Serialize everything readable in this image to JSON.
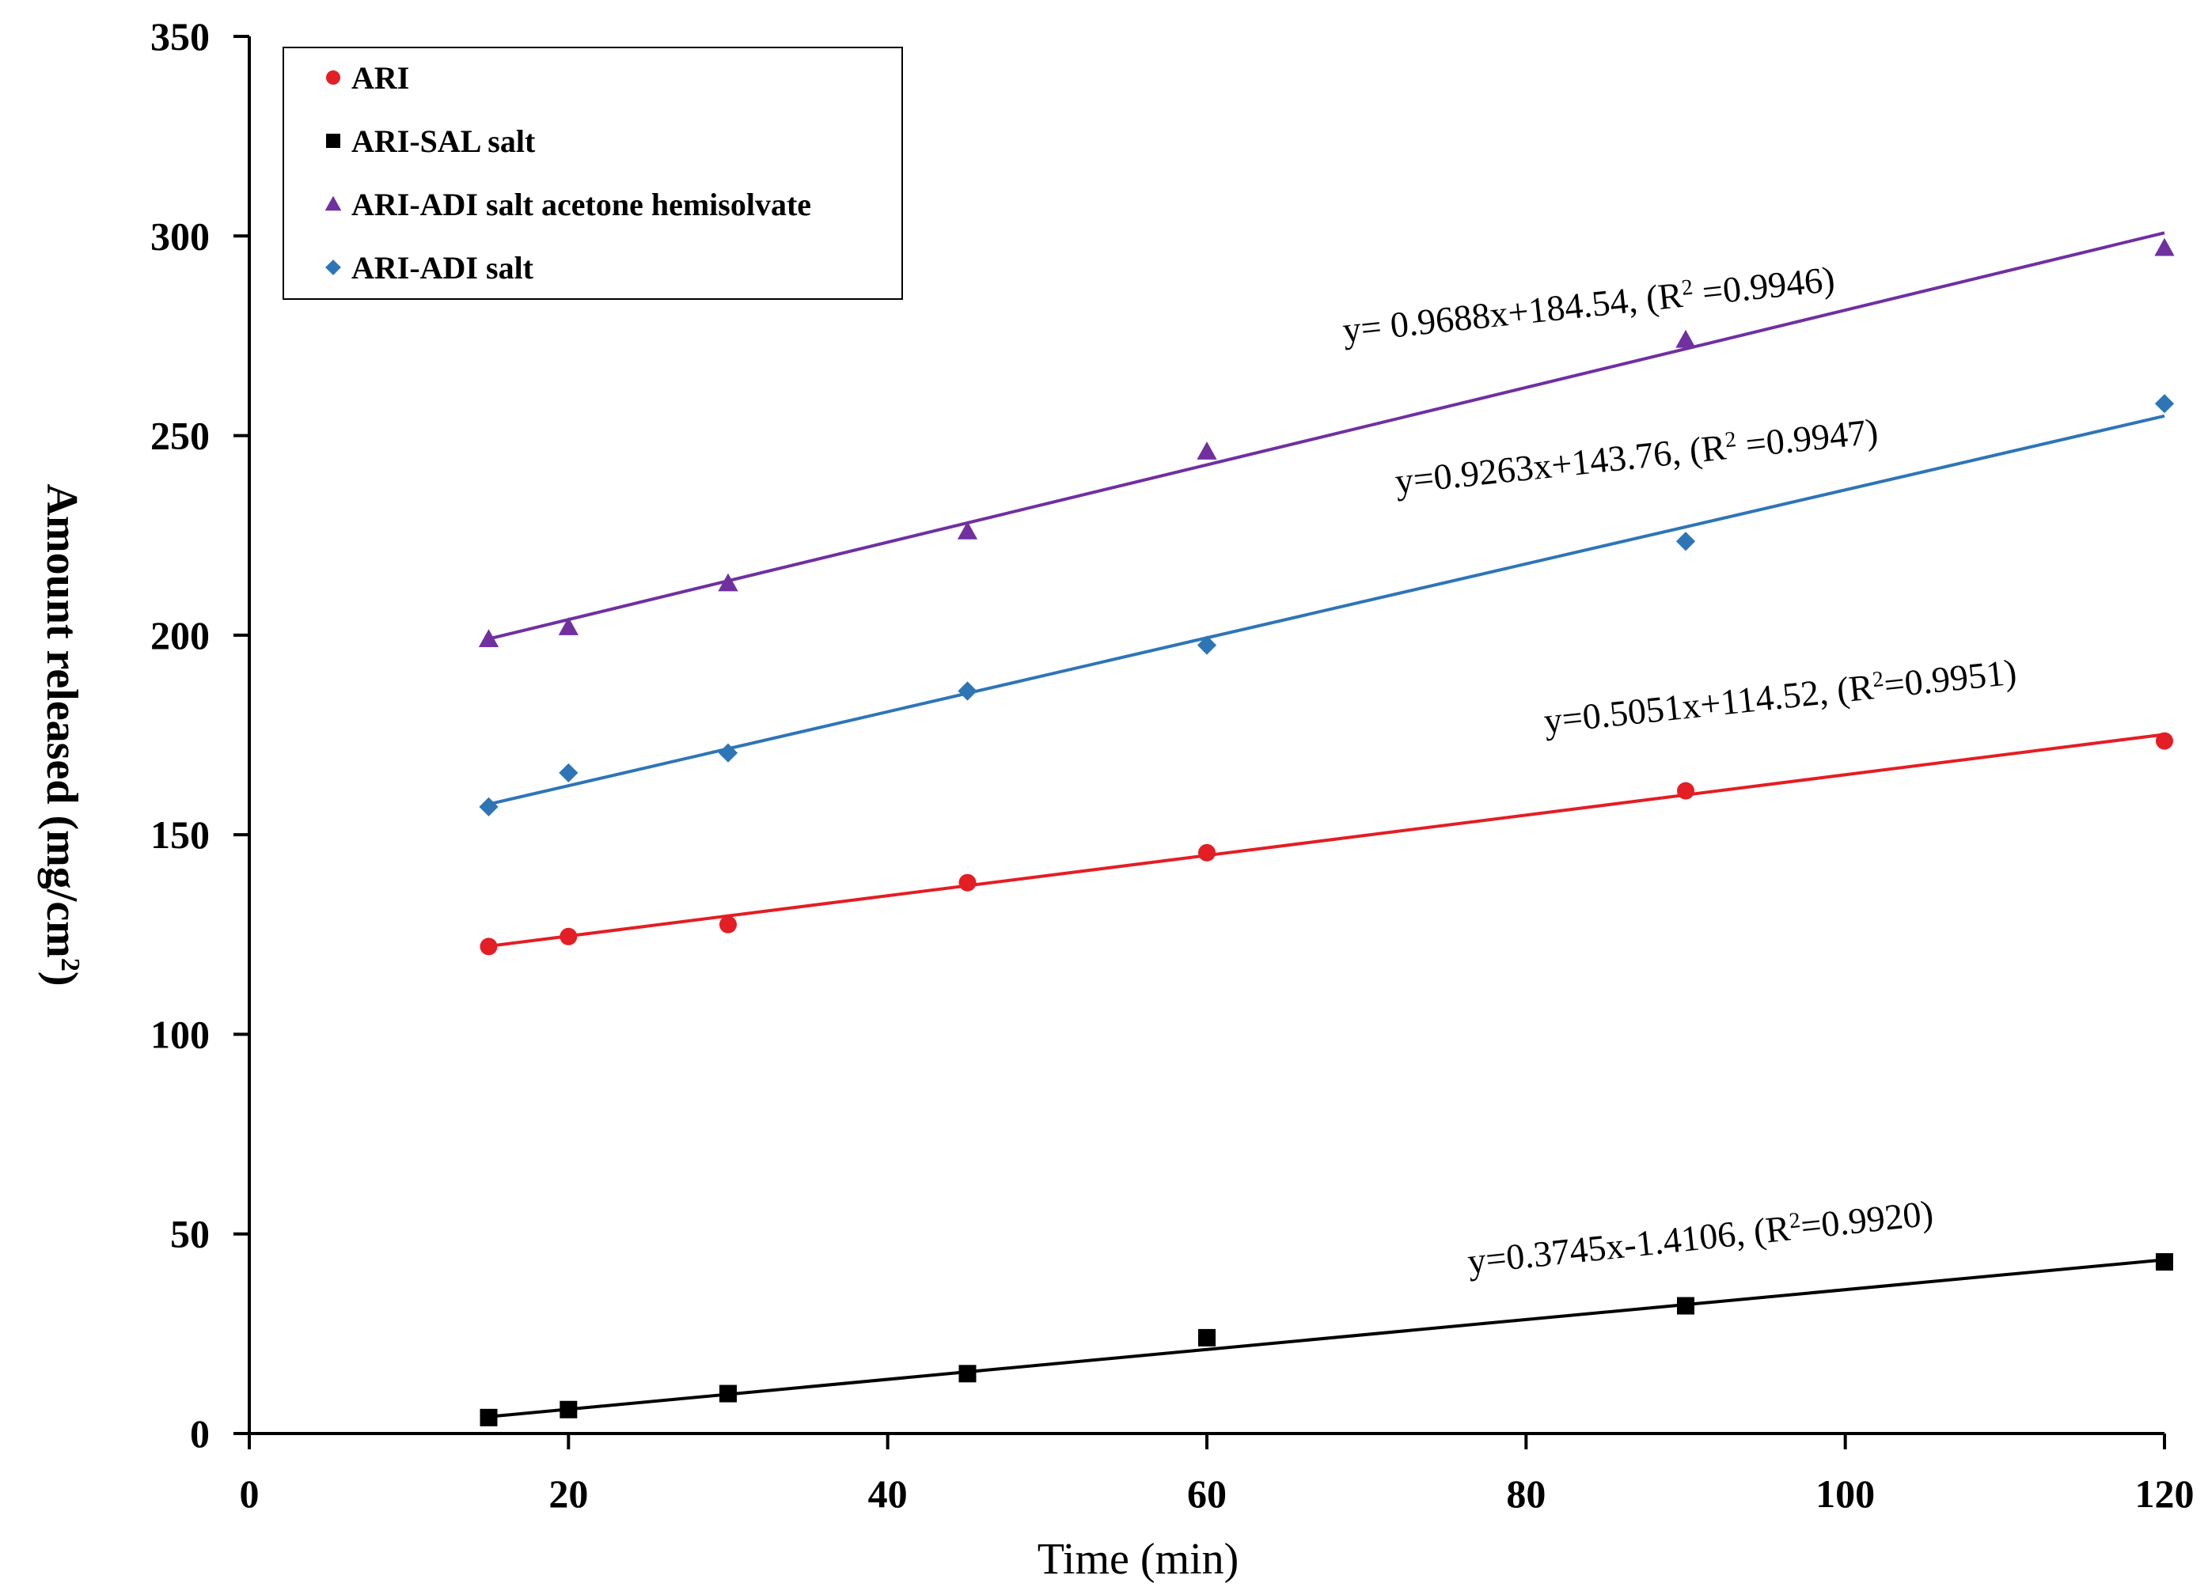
{
  "chart_data": {
    "type": "scatter",
    "title": "",
    "xlabel": "Time (min)",
    "ylabel": "Amount released (mg/cm",
    "ylabel_sup": "2",
    "ylabel_close": ")",
    "xlim": [
      0,
      120
    ],
    "ylim": [
      0,
      350
    ],
    "x_ticks": [
      0,
      20,
      40,
      60,
      80,
      100,
      120
    ],
    "y_ticks": [
      0,
      50,
      100,
      150,
      200,
      250,
      300,
      350
    ],
    "grid": false,
    "legend_position": "top-left",
    "x": [
      15,
      20,
      30,
      45,
      60,
      90,
      120
    ],
    "series": [
      {
        "name": "ARI",
        "color": "#e31e24",
        "marker": "circle",
        "values": [
          122,
          124.5,
          127.5,
          138,
          145.5,
          161,
          173.5
        ],
        "trend": {
          "slope": 0.5051,
          "intercept": 114.52
        },
        "equation": "y=0.5051x+114.52, (R",
        "eq_sup": "2",
        "eq_tail": "=0.9951)"
      },
      {
        "name": "ARI-SAL salt",
        "color": "#000000",
        "marker": "square",
        "values": [
          4,
          6,
          10,
          15,
          24,
          32,
          43
        ],
        "trend": {
          "slope": 0.3745,
          "intercept": -1.4106
        },
        "equation": "y=0.3745x-1.4106, (R",
        "eq_sup": "2",
        "eq_tail": "=0.9920)"
      },
      {
        "name": "ARI-ADI salt acetone hemisolvate",
        "color": "#7030a0",
        "marker": "triangle",
        "values": [
          199,
          202,
          213,
          226,
          246,
          274,
          297
        ],
        "trend": {
          "slope": 0.9688,
          "intercept": 184.54
        },
        "equation": "y= 0.9688x+184.54, (R",
        "eq_sup": "2",
        "eq_tail": " =0.9946)"
      },
      {
        "name": "ARI-ADI salt",
        "color": "#2e75b6",
        "marker": "diamond",
        "values": [
          157,
          165.5,
          170.5,
          186,
          197.5,
          223.5,
          258
        ],
        "trend": {
          "slope": 0.9263,
          "intercept": 143.76
        },
        "equation": "y=0.9263x+143.76, (R",
        "eq_sup": "2",
        "eq_tail": " =0.9947)"
      }
    ]
  }
}
